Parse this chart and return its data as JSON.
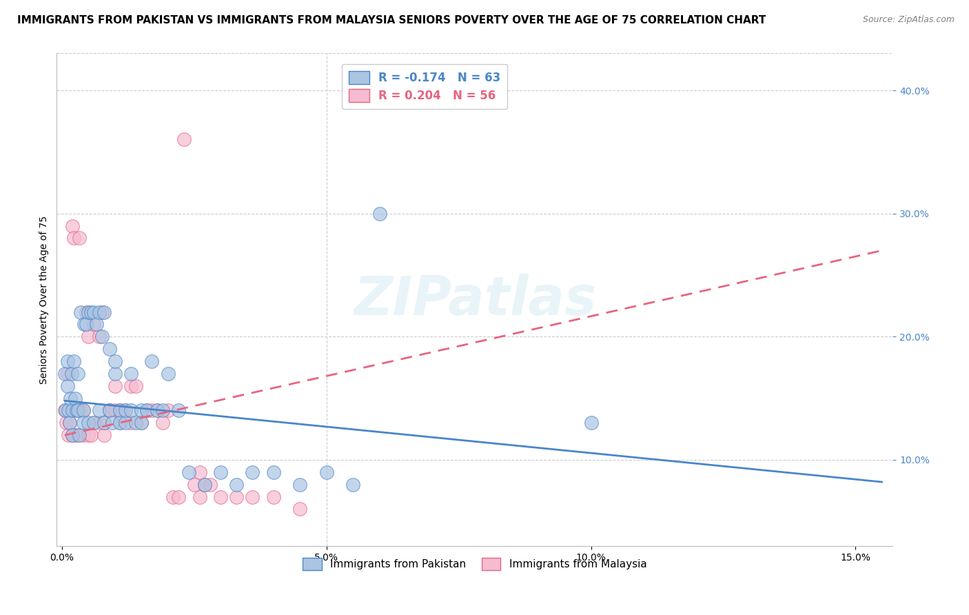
{
  "title": "IMMIGRANTS FROM PAKISTAN VS IMMIGRANTS FROM MALAYSIA SENIORS POVERTY OVER THE AGE OF 75 CORRELATION CHART",
  "source": "Source: ZipAtlas.com",
  "ylabel": "Seniors Poverty Over the Age of 75",
  "xlabel_ticks": [
    "0.0%",
    "5.0%",
    "10.0%",
    "15.0%"
  ],
  "xlabel_vals": [
    0.0,
    0.05,
    0.1,
    0.15
  ],
  "ylabel_ticks_right": [
    "10.0%",
    "20.0%",
    "30.0%",
    "40.0%"
  ],
  "ylabel_vals_right": [
    0.1,
    0.2,
    0.3,
    0.4
  ],
  "xlim": [
    -0.001,
    0.157
  ],
  "ylim": [
    0.03,
    0.43
  ],
  "pakistan_color": "#aac4e2",
  "malaysia_color": "#f5bbd0",
  "pakistan_line_color": "#4a86c8",
  "malaysia_line_color": "#e86480",
  "R_pakistan": -0.174,
  "N_pakistan": 63,
  "R_malaysia": 0.204,
  "N_malaysia": 56,
  "watermark": "ZIPatlas",
  "pakistan_x": [
    0.0005,
    0.0007,
    0.001,
    0.001,
    0.0012,
    0.0014,
    0.0016,
    0.0018,
    0.002,
    0.002,
    0.0022,
    0.0025,
    0.0028,
    0.003,
    0.003,
    0.0032,
    0.0035,
    0.004,
    0.004,
    0.0042,
    0.0045,
    0.005,
    0.005,
    0.0055,
    0.006,
    0.006,
    0.0065,
    0.007,
    0.007,
    0.0075,
    0.008,
    0.008,
    0.009,
    0.009,
    0.0095,
    0.01,
    0.01,
    0.011,
    0.011,
    0.012,
    0.012,
    0.013,
    0.013,
    0.014,
    0.015,
    0.015,
    0.016,
    0.017,
    0.018,
    0.019,
    0.02,
    0.022,
    0.024,
    0.027,
    0.03,
    0.033,
    0.036,
    0.04,
    0.045,
    0.05,
    0.055,
    0.06,
    0.1
  ],
  "pakistan_y": [
    0.17,
    0.14,
    0.18,
    0.16,
    0.14,
    0.13,
    0.15,
    0.17,
    0.14,
    0.12,
    0.18,
    0.15,
    0.14,
    0.17,
    0.14,
    0.12,
    0.22,
    0.14,
    0.13,
    0.21,
    0.21,
    0.13,
    0.22,
    0.22,
    0.22,
    0.13,
    0.21,
    0.22,
    0.14,
    0.2,
    0.22,
    0.13,
    0.19,
    0.14,
    0.13,
    0.17,
    0.18,
    0.14,
    0.13,
    0.13,
    0.14,
    0.14,
    0.17,
    0.13,
    0.14,
    0.13,
    0.14,
    0.18,
    0.14,
    0.14,
    0.17,
    0.14,
    0.09,
    0.08,
    0.09,
    0.08,
    0.09,
    0.09,
    0.08,
    0.09,
    0.08,
    0.3,
    0.13
  ],
  "malaysia_x": [
    0.0005,
    0.0008,
    0.001,
    0.0012,
    0.0015,
    0.0018,
    0.002,
    0.002,
    0.0022,
    0.0025,
    0.003,
    0.003,
    0.0032,
    0.0035,
    0.004,
    0.004,
    0.0045,
    0.005,
    0.005,
    0.0055,
    0.006,
    0.006,
    0.007,
    0.007,
    0.0075,
    0.008,
    0.008,
    0.009,
    0.009,
    0.01,
    0.01,
    0.011,
    0.011,
    0.012,
    0.013,
    0.013,
    0.014,
    0.015,
    0.016,
    0.017,
    0.018,
    0.019,
    0.02,
    0.021,
    0.022,
    0.023,
    0.025,
    0.026,
    0.026,
    0.027,
    0.028,
    0.03,
    0.033,
    0.036,
    0.04,
    0.045
  ],
  "malaysia_y": [
    0.14,
    0.13,
    0.17,
    0.12,
    0.13,
    0.14,
    0.29,
    0.12,
    0.28,
    0.12,
    0.14,
    0.12,
    0.28,
    0.14,
    0.12,
    0.14,
    0.22,
    0.12,
    0.2,
    0.12,
    0.21,
    0.13,
    0.2,
    0.13,
    0.22,
    0.12,
    0.13,
    0.14,
    0.14,
    0.16,
    0.14,
    0.13,
    0.14,
    0.14,
    0.16,
    0.13,
    0.16,
    0.13,
    0.14,
    0.14,
    0.14,
    0.13,
    0.14,
    0.07,
    0.07,
    0.36,
    0.08,
    0.09,
    0.07,
    0.08,
    0.08,
    0.07,
    0.07,
    0.07,
    0.07,
    0.06
  ],
  "grid_color": "#cccccc",
  "background_color": "#ffffff",
  "title_fontsize": 11,
  "axis_label_fontsize": 10,
  "tick_fontsize": 10,
  "pak_line_x": [
    0.0005,
    0.155
  ],
  "pak_line_y": [
    0.148,
    0.082
  ],
  "mal_line_x": [
    0.0005,
    0.155
  ],
  "mal_line_y": [
    0.12,
    0.27
  ]
}
